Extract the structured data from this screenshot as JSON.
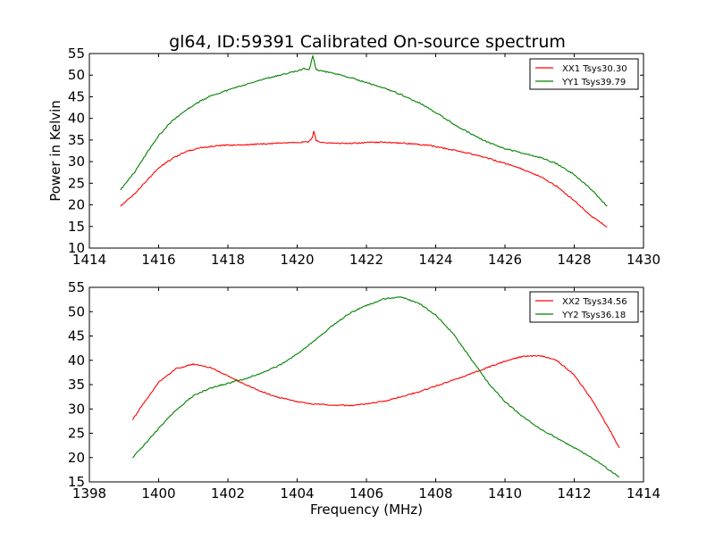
{
  "figure": {
    "title": "gl64, ID:59391 Calibrated On-source spectrum",
    "ylabel": "Power in Kelvin",
    "xlabel": "Frequency (MHz)"
  },
  "chart_data": [
    {
      "type": "line",
      "title": "gl64, ID:59391 Calibrated On-source spectrum",
      "xlabel": "",
      "ylabel": "Power in Kelvin",
      "xlim": [
        1414,
        1430
      ],
      "ylim": [
        10,
        55
      ],
      "xticks": [
        1414,
        1416,
        1418,
        1420,
        1422,
        1424,
        1426,
        1428,
        1430
      ],
      "yticks": [
        10,
        15,
        20,
        25,
        30,
        35,
        40,
        45,
        50,
        55
      ],
      "grid": false,
      "legend_position": "top-right",
      "series": [
        {
          "name": "XX1 Tsys30.30",
          "color": "#ff0000",
          "points": [
            [
              1414.9,
              19.7
            ],
            [
              1415.3,
              22.5
            ],
            [
              1415.7,
              26.0
            ],
            [
              1416.0,
              28.5
            ],
            [
              1416.4,
              30.8
            ],
            [
              1416.8,
              32.3
            ],
            [
              1417.2,
              33.2
            ],
            [
              1417.6,
              33.6
            ],
            [
              1418.0,
              33.8
            ],
            [
              1418.5,
              33.9
            ],
            [
              1419.0,
              34.1
            ],
            [
              1419.5,
              34.3
            ],
            [
              1420.0,
              34.5
            ],
            [
              1420.3,
              34.5
            ],
            [
              1420.42,
              35.2
            ],
            [
              1420.48,
              37.0
            ],
            [
              1420.55,
              34.9
            ],
            [
              1420.7,
              34.5
            ],
            [
              1421.0,
              34.3
            ],
            [
              1421.5,
              34.2
            ],
            [
              1422.0,
              34.4
            ],
            [
              1422.5,
              34.5
            ],
            [
              1423.0,
              34.3
            ],
            [
              1423.5,
              34.0
            ],
            [
              1424.0,
              33.5
            ],
            [
              1424.5,
              32.7
            ],
            [
              1425.0,
              31.8
            ],
            [
              1425.5,
              30.8
            ],
            [
              1426.0,
              29.6
            ],
            [
              1426.5,
              28.3
            ],
            [
              1427.0,
              26.6
            ],
            [
              1427.5,
              24.3
            ],
            [
              1428.0,
              21.0
            ],
            [
              1428.5,
              17.3
            ],
            [
              1428.95,
              14.9
            ]
          ]
        },
        {
          "name": "YY1 Tsys39.79",
          "color": "#008000",
          "points": [
            [
              1414.9,
              23.5
            ],
            [
              1415.3,
              27.5
            ],
            [
              1415.7,
              32.5
            ],
            [
              1416.0,
              36.0
            ],
            [
              1416.4,
              39.5
            ],
            [
              1416.8,
              42.0
            ],
            [
              1417.2,
              44.0
            ],
            [
              1417.6,
              45.5
            ],
            [
              1418.0,
              46.5
            ],
            [
              1418.5,
              47.8
            ],
            [
              1419.0,
              49.0
            ],
            [
              1419.5,
              50.0
            ],
            [
              1420.0,
              51.0
            ],
            [
              1420.2,
              51.5
            ],
            [
              1420.35,
              51.2
            ],
            [
              1420.45,
              54.5
            ],
            [
              1420.55,
              51.3
            ],
            [
              1420.7,
              51.0
            ],
            [
              1421.0,
              50.5
            ],
            [
              1421.5,
              49.5
            ],
            [
              1422.0,
              48.3
            ],
            [
              1422.5,
              47.0
            ],
            [
              1423.0,
              45.5
            ],
            [
              1423.5,
              43.7
            ],
            [
              1424.0,
              41.4
            ],
            [
              1424.5,
              38.8
            ],
            [
              1425.0,
              36.5
            ],
            [
              1425.5,
              34.5
            ],
            [
              1426.0,
              33.0
            ],
            [
              1426.5,
              32.0
            ],
            [
              1427.0,
              31.0
            ],
            [
              1427.5,
              29.5
            ],
            [
              1428.0,
              27.0
            ],
            [
              1428.5,
              23.5
            ],
            [
              1428.95,
              19.7
            ]
          ]
        }
      ]
    },
    {
      "type": "line",
      "title": "",
      "xlabel": "Frequency (MHz)",
      "ylabel": "",
      "xlim": [
        1398,
        1414
      ],
      "ylim": [
        15,
        55
      ],
      "xticks": [
        1398,
        1400,
        1402,
        1404,
        1406,
        1408,
        1410,
        1412,
        1414
      ],
      "yticks": [
        15,
        20,
        25,
        30,
        35,
        40,
        45,
        50,
        55
      ],
      "grid": false,
      "legend_position": "top-right",
      "series": [
        {
          "name": "XX2 Tsys34.56",
          "color": "#ff0000",
          "points": [
            [
              1399.25,
              27.8
            ],
            [
              1399.6,
              31.5
            ],
            [
              1400.0,
              35.5
            ],
            [
              1400.5,
              38.3
            ],
            [
              1401.0,
              39.2
            ],
            [
              1401.5,
              38.5
            ],
            [
              1402.0,
              36.8
            ],
            [
              1402.5,
              35.0
            ],
            [
              1403.0,
              33.5
            ],
            [
              1403.5,
              32.3
            ],
            [
              1404.0,
              31.5
            ],
            [
              1404.5,
              31.0
            ],
            [
              1405.0,
              30.8
            ],
            [
              1405.5,
              30.7
            ],
            [
              1406.0,
              31.0
            ],
            [
              1406.5,
              31.6
            ],
            [
              1407.0,
              32.5
            ],
            [
              1407.5,
              33.5
            ],
            [
              1408.0,
              34.7
            ],
            [
              1408.5,
              35.9
            ],
            [
              1409.0,
              37.2
            ],
            [
              1409.5,
              38.5
            ],
            [
              1410.0,
              39.8
            ],
            [
              1410.5,
              40.8
            ],
            [
              1411.0,
              41.0
            ],
            [
              1411.5,
              40.0
            ],
            [
              1412.0,
              37.0
            ],
            [
              1412.5,
              32.0
            ],
            [
              1413.0,
              26.0
            ],
            [
              1413.3,
              22.0
            ]
          ]
        },
        {
          "name": "YY2 Tsys36.18",
          "color": "#008000",
          "points": [
            [
              1399.25,
              20.0
            ],
            [
              1399.7,
              23.5
            ],
            [
              1400.0,
              26.0
            ],
            [
              1400.5,
              29.8
            ],
            [
              1401.0,
              32.7
            ],
            [
              1401.5,
              34.3
            ],
            [
              1402.0,
              35.3
            ],
            [
              1402.5,
              36.2
            ],
            [
              1403.0,
              37.4
            ],
            [
              1403.5,
              39.0
            ],
            [
              1404.0,
              41.3
            ],
            [
              1404.5,
              44.0
            ],
            [
              1405.0,
              47.0
            ],
            [
              1405.5,
              49.6
            ],
            [
              1406.0,
              51.3
            ],
            [
              1406.5,
              52.6
            ],
            [
              1407.0,
              53.0
            ],
            [
              1407.5,
              51.8
            ],
            [
              1408.0,
              49.3
            ],
            [
              1408.5,
              45.5
            ],
            [
              1409.0,
              40.5
            ],
            [
              1409.5,
              35.5
            ],
            [
              1410.0,
              31.5
            ],
            [
              1410.5,
              28.5
            ],
            [
              1411.0,
              26.0
            ],
            [
              1411.5,
              24.0
            ],
            [
              1412.0,
              22.0
            ],
            [
              1412.5,
              20.0
            ],
            [
              1413.0,
              17.5
            ],
            [
              1413.3,
              16.0
            ]
          ]
        }
      ]
    }
  ]
}
